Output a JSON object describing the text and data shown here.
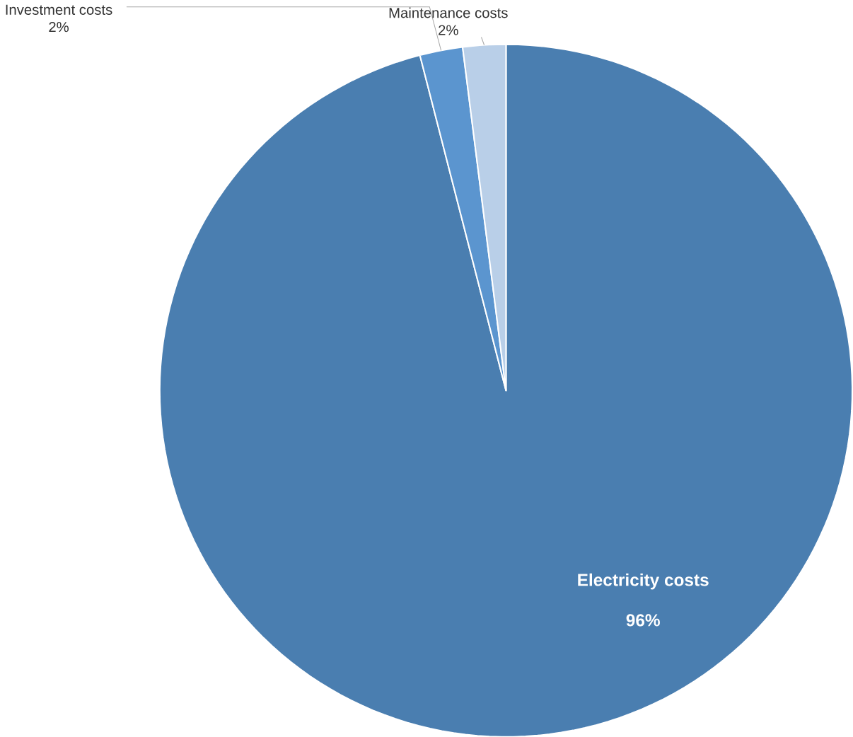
{
  "chart_data": {
    "type": "pie",
    "categories": [
      "Electricity costs",
      "Investment costs",
      "Maintenance costs"
    ],
    "values": [
      96,
      2,
      2
    ],
    "colors": [
      "#4a7eb0",
      "#5b95cf",
      "#b9cfe8"
    ],
    "value_labels": [
      "96%",
      "2%",
      "2%"
    ]
  }
}
